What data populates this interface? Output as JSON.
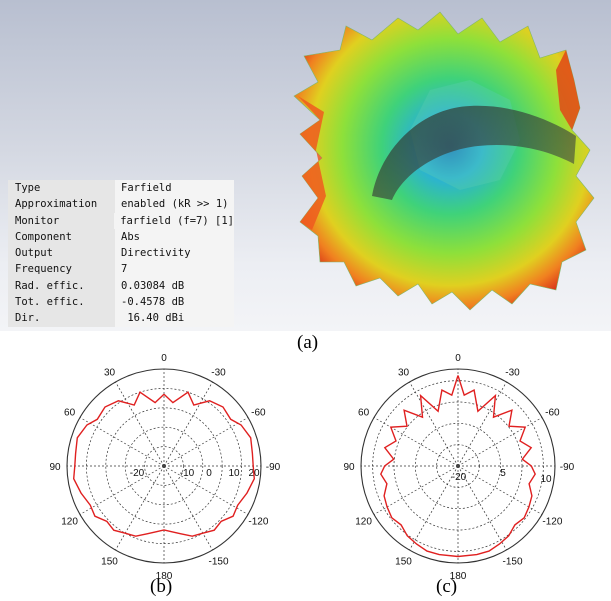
{
  "info_table": {
    "rows": [
      {
        "key": "Type",
        "value": "Farfield"
      },
      {
        "key": "Approximation",
        "value": "enabled (kR >> 1)"
      },
      {
        "key": "Monitor",
        "value": "farfield (f=7) [1]"
      },
      {
        "key": "Component",
        "value": "Abs"
      },
      {
        "key": "Output",
        "value": "Directivity"
      },
      {
        "key": "Frequency",
        "value": "7"
      },
      {
        "key": "Rad. effic.",
        "value": "0.03084 dB"
      },
      {
        "key": "Tot. effic.",
        "value": "-0.4578 dB"
      },
      {
        "key": "Dir.",
        "value": " 16.40 dBi"
      }
    ]
  },
  "captions": {
    "a": "(a)",
    "b": "(b)",
    "c": "(c)"
  },
  "colors": {
    "pattern_line": "#e02020",
    "grid": "#333333",
    "background_top": "#b8bfd0"
  },
  "chart_data": [
    {
      "type": "polar-line",
      "caption": "(b)",
      "angle_labels": [
        "0",
        "-30",
        "-60",
        "-90",
        "-120",
        "-150",
        "180",
        "150",
        "120",
        "90",
        "60",
        "30"
      ],
      "radial_labels": [
        "-20",
        "-10",
        "0",
        "10",
        "20"
      ],
      "r_range": [
        -30,
        20
      ],
      "angle_direction": "clockwise-negative",
      "series": [
        {
          "values": [
            {
              "theta": 0,
              "r": 7
            },
            {
              "theta": -8,
              "r": 3
            },
            {
              "theta": -18,
              "r": 10
            },
            {
              "theta": -26,
              "r": 5
            },
            {
              "theta": -35,
              "r": 11
            },
            {
              "theta": -45,
              "r": 13
            },
            {
              "theta": -55,
              "r": 12
            },
            {
              "theta": -62,
              "r": 15
            },
            {
              "theta": -72,
              "r": 17
            },
            {
              "theta": -82,
              "r": 16
            },
            {
              "theta": -90,
              "r": 16
            },
            {
              "theta": -98,
              "r": 17
            },
            {
              "theta": -108,
              "r": 15
            },
            {
              "theta": -118,
              "r": 13
            },
            {
              "theta": -126,
              "r": 14
            },
            {
              "theta": -134,
              "r": 11
            },
            {
              "theta": -142,
              "r": 12
            },
            {
              "theta": -150,
              "r": 10
            },
            {
              "theta": -158,
              "r": 9
            },
            {
              "theta": -166,
              "r": 6
            },
            {
              "theta": -174,
              "r": 4
            },
            {
              "theta": 180,
              "r": 3
            },
            {
              "theta": 174,
              "r": 4
            },
            {
              "theta": 166,
              "r": 6
            },
            {
              "theta": 158,
              "r": 9
            },
            {
              "theta": 150,
              "r": 10
            },
            {
              "theta": 142,
              "r": 12
            },
            {
              "theta": 134,
              "r": 11
            },
            {
              "theta": 126,
              "r": 14
            },
            {
              "theta": 118,
              "r": 13
            },
            {
              "theta": 108,
              "r": 15
            },
            {
              "theta": 98,
              "r": 17
            },
            {
              "theta": 90,
              "r": 16
            },
            {
              "theta": 82,
              "r": 16
            },
            {
              "theta": 72,
              "r": 17
            },
            {
              "theta": 62,
              "r": 15
            },
            {
              "theta": 55,
              "r": 12
            },
            {
              "theta": 45,
              "r": 13
            },
            {
              "theta": 35,
              "r": 11
            },
            {
              "theta": 26,
              "r": 5
            },
            {
              "theta": 18,
              "r": 10
            },
            {
              "theta": 8,
              "r": 3
            }
          ]
        }
      ]
    },
    {
      "type": "polar-line",
      "caption": "(c)",
      "angle_labels": [
        "0",
        "-30",
        "-60",
        "-90",
        "-120",
        "-150",
        "180",
        "150",
        "120",
        "90",
        "60",
        "30"
      ],
      "radial_labels": [
        "-20",
        "5",
        "10"
      ],
      "r_range": [
        -30,
        15
      ],
      "angle_direction": "clockwise-negative",
      "series": [
        {
          "values": [
            {
              "theta": 0,
              "r": 12
            },
            {
              "theta": -5,
              "r": 3
            },
            {
              "theta": -12,
              "r": 6
            },
            {
              "theta": -20,
              "r": -3
            },
            {
              "theta": -28,
              "r": 7
            },
            {
              "theta": -36,
              "r": -2
            },
            {
              "theta": -44,
              "r": 6
            },
            {
              "theta": -52,
              "r": 0
            },
            {
              "theta": -60,
              "r": 6
            },
            {
              "theta": -68,
              "r": 1
            },
            {
              "theta": -76,
              "r": 5
            },
            {
              "theta": -84,
              "r": 0
            },
            {
              "theta": -90,
              "r": 4
            },
            {
              "theta": -96,
              "r": 6
            },
            {
              "theta": -104,
              "r": 4
            },
            {
              "theta": -112,
              "r": 7
            },
            {
              "theta": -120,
              "r": 8
            },
            {
              "theta": -128,
              "r": 9
            },
            {
              "theta": -136,
              "r": 8
            },
            {
              "theta": -144,
              "r": 10
            },
            {
              "theta": -152,
              "r": 11
            },
            {
              "theta": -160,
              "r": 12
            },
            {
              "theta": -168,
              "r": 12
            },
            {
              "theta": 180,
              "r": 12
            },
            {
              "theta": 168,
              "r": 12
            },
            {
              "theta": 160,
              "r": 12
            },
            {
              "theta": 152,
              "r": 11
            },
            {
              "theta": 144,
              "r": 10
            },
            {
              "theta": 136,
              "r": 8
            },
            {
              "theta": 128,
              "r": 9
            },
            {
              "theta": 120,
              "r": 8
            },
            {
              "theta": 112,
              "r": 7
            },
            {
              "theta": 104,
              "r": 4
            },
            {
              "theta": 96,
              "r": 6
            },
            {
              "theta": 90,
              "r": 4
            },
            {
              "theta": 84,
              "r": 0
            },
            {
              "theta": 76,
              "r": 5
            },
            {
              "theta": 68,
              "r": 1
            },
            {
              "theta": 60,
              "r": 6
            },
            {
              "theta": 52,
              "r": 0
            },
            {
              "theta": 44,
              "r": 6
            },
            {
              "theta": 36,
              "r": -2
            },
            {
              "theta": 28,
              "r": 7
            },
            {
              "theta": 20,
              "r": -3
            },
            {
              "theta": 12,
              "r": 6
            },
            {
              "theta": 5,
              "r": 3
            }
          ]
        }
      ]
    }
  ]
}
